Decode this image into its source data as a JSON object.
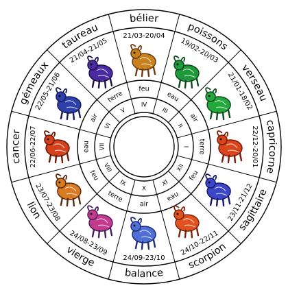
{
  "signs": [
    {
      "key": "belier",
      "name": "bélier",
      "dates": "21/03-20/04",
      "element": "feu",
      "roman": "IV",
      "colors": [
        "#c8811d",
        "#6b3a0d"
      ]
    },
    {
      "key": "poissons",
      "name": "poissons",
      "dates": "19/02-20/03",
      "element": "eau",
      "roman": "III",
      "colors": [
        "#1f9a3a",
        "#0c4a1b"
      ]
    },
    {
      "key": "verseau",
      "name": "verseau",
      "dates": "21/01-18/02",
      "element": "air",
      "roman": "II",
      "colors": [
        "#23a83b",
        "#0c4a1b"
      ]
    },
    {
      "key": "capricorne",
      "name": "capricorne",
      "dates": "22/12-20/01",
      "element": "terre",
      "roman": "I",
      "colors": [
        "#d9441a",
        "#7a1a08"
      ]
    },
    {
      "key": "sagittaire",
      "name": "sagittaire",
      "dates": "23/11-21/12",
      "element": "feu",
      "roman": "XII",
      "colors": [
        "#3d46c8",
        "#141a6a"
      ]
    },
    {
      "key": "scorpion",
      "name": "scorpion",
      "dates": "24/10-22/11",
      "element": "eau",
      "roman": "XI",
      "colors": [
        "#e2521f",
        "#7a2208"
      ]
    },
    {
      "key": "balance",
      "name": "balance",
      "dates": "24/09-23/10",
      "element": "air",
      "roman": "X",
      "colors": [
        "#4d6fd6",
        "#1d2c7a"
      ]
    },
    {
      "key": "vierge",
      "name": "vierge",
      "dates": "24/08-23/09",
      "element": "terre",
      "roman": "IX",
      "colors": [
        "#c43a8c",
        "#4d1a5e"
      ]
    },
    {
      "key": "lion",
      "name": "lion",
      "dates": "23/07-23/08",
      "element": "feu",
      "roman": "VIII",
      "colors": [
        "#d87a22",
        "#5a2a0a"
      ]
    },
    {
      "key": "cancer",
      "name": "cancer",
      "dates": "22/06-22/07",
      "element": "eau",
      "roman": "VII",
      "colors": [
        "#d2401c",
        "#6a1808"
      ]
    },
    {
      "key": "gemeaux",
      "name": "gémeaux",
      "dates": "22/05-21/06",
      "element": "air",
      "roman": "VI",
      "colors": [
        "#2d3fa8",
        "#141c5c"
      ]
    },
    {
      "key": "taureau",
      "name": "taureau",
      "dates": "21/04-21/05",
      "element": "terre",
      "roman": "V",
      "colors": [
        "#4a2aa0",
        "#1d0f4a"
      ]
    }
  ]
}
